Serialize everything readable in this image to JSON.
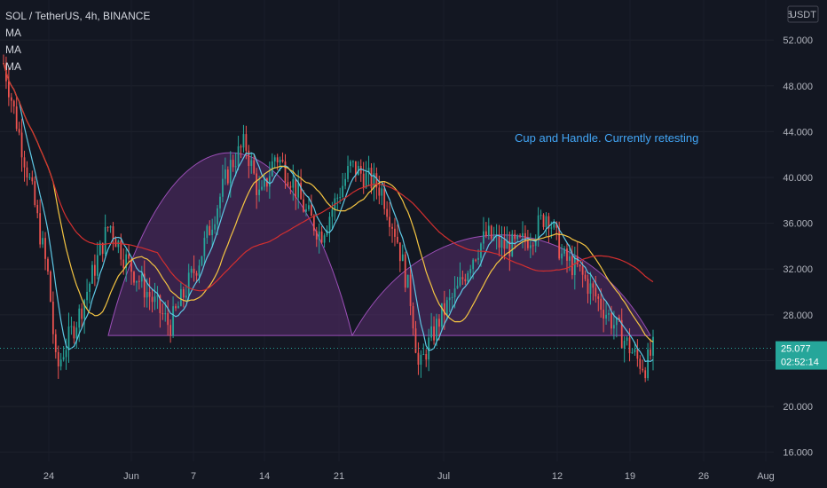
{
  "header": {
    "symbol_line": "SOL / TetherUS, 4h, BINANCE",
    "indicators": [
      "MA",
      "MA",
      "MA"
    ]
  },
  "axis": {
    "currency_label": "USDT",
    "currency_prefix": "5"
  },
  "annotation": {
    "text": "Cup and Handle. Currently retesting",
    "color": "#42a5f5"
  },
  "last_price": {
    "value": "25.077",
    "countdown": "02:52:14",
    "color": "#26a69a"
  },
  "colors": {
    "background": "#131722",
    "up": "#26a69a",
    "down": "#ef5350",
    "ma_fast": "#5ec8e5",
    "ma_mid": "#f5c542",
    "ma_slow": "#d32f2f",
    "cup_fill": "#5a2d6e",
    "cup_stroke": "#9c4fb8"
  },
  "chart_data": {
    "type": "candlestick",
    "title": "SOL / TetherUS, 4h, BINANCE",
    "ylim": [
      15.2,
      55.5
    ],
    "y_ticks": [
      "16.000",
      "20.000",
      "24.000",
      "28.000",
      "32.000",
      "36.000",
      "40.000",
      "44.000",
      "48.000",
      "52.000"
    ],
    "x_ticks": [
      "24",
      "Jun",
      "7",
      "14",
      "21",
      "Jul",
      "12",
      "19",
      "26",
      "Aug"
    ],
    "price_path": [
      [
        0,
        50
      ],
      [
        2,
        44
      ],
      [
        4,
        38
      ],
      [
        6,
        31
      ],
      [
        7,
        23
      ],
      [
        8,
        25
      ],
      [
        10,
        28
      ],
      [
        12,
        32
      ],
      [
        14,
        36
      ],
      [
        16,
        33
      ],
      [
        18,
        31
      ],
      [
        20,
        29
      ],
      [
        22,
        27
      ],
      [
        24,
        30
      ],
      [
        26,
        33
      ],
      [
        28,
        37
      ],
      [
        30,
        41
      ],
      [
        32,
        43
      ],
      [
        34,
        38
      ],
      [
        36,
        42
      ],
      [
        38,
        40
      ],
      [
        40,
        37
      ],
      [
        42,
        35
      ],
      [
        44,
        38
      ],
      [
        46,
        41
      ],
      [
        48,
        40
      ],
      [
        50,
        39
      ],
      [
        52,
        35
      ],
      [
        54,
        29
      ],
      [
        55,
        23
      ],
      [
        56,
        25
      ],
      [
        58,
        28
      ],
      [
        60,
        30
      ],
      [
        62,
        33
      ],
      [
        64,
        35
      ],
      [
        66,
        34
      ],
      [
        68,
        34
      ],
      [
        70,
        35
      ],
      [
        72,
        37
      ],
      [
        74,
        33
      ],
      [
        76,
        32
      ],
      [
        78,
        30
      ],
      [
        80,
        28
      ],
      [
        82,
        26
      ],
      [
        84,
        24
      ],
      [
        85,
        23.5
      ],
      [
        86,
        25
      ]
    ],
    "cup_and_handle": {
      "cup": {
        "rim": 26.2,
        "peak": 42.2
      },
      "handle": {
        "rim": 26.2,
        "peak": 35.0
      }
    },
    "series": [
      {
        "color": "#5ec8e5",
        "period": 7
      },
      {
        "color": "#f5c542",
        "period": 20
      },
      {
        "color": "#d32f2f",
        "period": 60
      }
    ],
    "horizontal_line": 25.077
  }
}
